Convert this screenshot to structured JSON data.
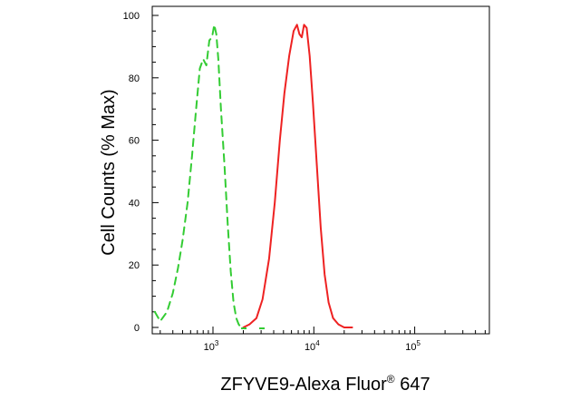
{
  "chart_data": {
    "type": "line",
    "title": "",
    "xlabel": "ZFYVE9-Alexa Fluor",
    "xlabel_superscript": "®",
    "xlabel_suffix": " 647",
    "ylabel": "Cell Counts (% Max)",
    "xscale": "log",
    "xlim": [
      250,
      550000
    ],
    "ylim": [
      0,
      100
    ],
    "xticks": [
      {
        "value": 1000,
        "base": "10",
        "exp": "3"
      },
      {
        "value": 10000,
        "base": "10",
        "exp": "4"
      },
      {
        "value": 100000,
        "base": "10",
        "exp": "5"
      }
    ],
    "yticks": [
      0,
      20,
      40,
      60,
      80,
      100
    ],
    "grid": false,
    "series": [
      {
        "color": "#33cc33",
        "dash": "dashed",
        "x": [
          265,
          300,
          350,
          400,
          450,
          500,
          560,
          620,
          680,
          740,
          800,
          860,
          920,
          980,
          1030,
          1080,
          1130,
          1200,
          1300,
          1400,
          1500,
          1600,
          1700,
          1800,
          1900
        ],
        "y": [
          5,
          2,
          5,
          11,
          19,
          28,
          40,
          55,
          70,
          83,
          86,
          84,
          92,
          93,
          97,
          94,
          86,
          70,
          52,
          33,
          18,
          8,
          3,
          1,
          0
        ]
      },
      {
        "color": "#ee2222",
        "dash": "solid",
        "x": [
          2000,
          2300,
          2700,
          3100,
          3600,
          4100,
          4600,
          5100,
          5700,
          6300,
          6800,
          7200,
          7600,
          8000,
          8500,
          9100,
          9800,
          10700,
          11700,
          12800,
          14000,
          15500,
          17500,
          20000,
          24000
        ],
        "y": [
          0,
          1,
          3,
          9,
          22,
          40,
          60,
          75,
          87,
          95,
          97,
          94,
          93,
          97,
          96,
          87,
          72,
          52,
          32,
          17,
          8,
          3,
          1,
          0,
          0
        ]
      }
    ]
  }
}
